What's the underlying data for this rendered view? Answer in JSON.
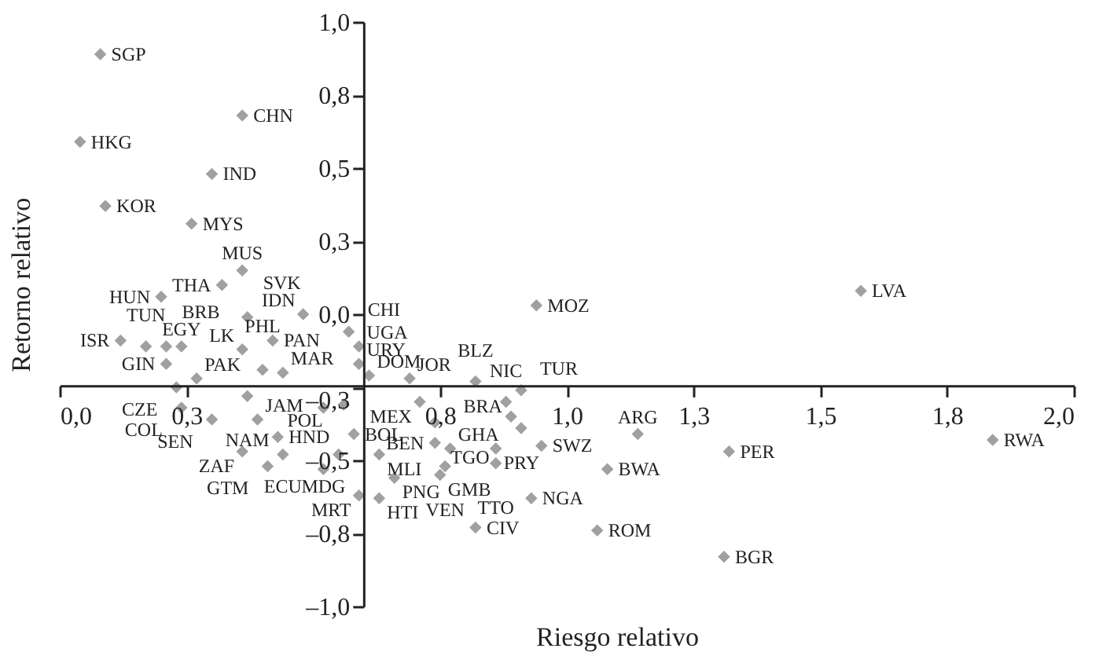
{
  "chart_data": {
    "type": "scatter",
    "xlabel": "Riesgo relativo",
    "ylabel": "Retorno relativo",
    "xlim": [
      0,
      2
    ],
    "ylim": [
      -1,
      1
    ],
    "xticks": [
      {
        "value": 0,
        "label": "0,0"
      },
      {
        "value": 0.25,
        "label": "0,3"
      },
      {
        "value": 0.75,
        "label": "0,8"
      },
      {
        "value": 1,
        "label": "1,0"
      },
      {
        "value": 1.25,
        "label": "1,3"
      },
      {
        "value": 1.5,
        "label": "1,5"
      },
      {
        "value": 1.75,
        "label": "1,8"
      },
      {
        "value": 2,
        "label": "2,0"
      }
    ],
    "yticks": [
      {
        "value": 1,
        "label": "1,0"
      },
      {
        "value": 0.75,
        "label": "0,8"
      },
      {
        "value": 0.5,
        "label": "0,5"
      },
      {
        "value": 0.25,
        "label": "0,3"
      },
      {
        "value": 0,
        "label": "0,0"
      },
      {
        "value": -0.25,
        "label": "–0,3"
      },
      {
        "value": -0.5,
        "label": "–0,5"
      },
      {
        "value": -0.75,
        "label": "–0,8"
      },
      {
        "value": -1,
        "label": "–1,0"
      }
    ],
    "grid": false,
    "marker": "diamond",
    "series": [
      {
        "color": "#a0a0a0",
        "x": [
          0.08,
          0.36,
          0.04,
          0.3,
          0.09,
          0.26,
          0.36,
          0.32,
          0.2,
          0.48,
          0.37,
          0.12,
          0.17,
          0.21,
          0.24,
          0.36,
          0.42,
          0.21,
          0.27,
          0.4,
          0.44,
          0.23,
          0.37,
          0.24,
          0.3,
          0.39,
          0.43,
          0.36,
          0.44,
          0.41,
          0.52,
          0.55,
          0.59,
          0.63,
          0.66,
          0.63,
          0.75,
          0.76,
          0.71,
          0.69,
          0.74,
          0.74,
          0.77,
          0.86,
          0.86,
          0.95,
          0.91,
          0.88,
          0.91,
          0.82,
          0.94,
          0.57,
          0.59,
          0.59,
          0.61,
          0.93,
          0.82,
          1.06,
          1.08,
          1.14,
          1.32,
          1.31,
          1.84,
          1.58,
          0.52,
          0.56,
          0.89,
          0.58
        ],
        "values": [
          0.89,
          0.68,
          0.59,
          0.48,
          0.37,
          0.31,
          0.15,
          0.1,
          0.06,
          0.0,
          -0.01,
          -0.09,
          -0.11,
          -0.11,
          -0.11,
          -0.12,
          -0.09,
          -0.17,
          -0.22,
          -0.19,
          -0.2,
          -0.25,
          -0.28,
          -0.32,
          -0.36,
          -0.36,
          -0.42,
          -0.47,
          -0.48,
          -0.52,
          -0.53,
          -0.48,
          -0.62,
          -0.63,
          -0.56,
          -0.48,
          -0.55,
          -0.52,
          -0.3,
          -0.22,
          -0.37,
          -0.44,
          -0.46,
          -0.46,
          -0.51,
          -0.45,
          -0.39,
          -0.3,
          -0.26,
          -0.23,
          0.03,
          -0.06,
          -0.11,
          -0.17,
          -0.21,
          -0.63,
          -0.73,
          -0.74,
          -0.53,
          -0.41,
          -0.47,
          -0.83,
          -0.43,
          0.08,
          -0.32,
          -0.31,
          -0.35,
          -0.41
        ],
        "value_labels": [
          "SGP",
          "CHN",
          "HKG",
          "IND",
          "KOR",
          "MYS",
          "MUS",
          "THA",
          "HUN",
          "IDN",
          "SVK",
          "ISR",
          "TUN",
          "BRB",
          "EGY",
          "LK",
          "PAN",
          "GIN",
          "PAK",
          "PHL",
          "MAR",
          "CZE",
          "NAM",
          "COL",
          "SEN",
          "JAM",
          "HND",
          "ZAF",
          "ECU",
          "GTM",
          "MDG",
          "POL",
          "MRT",
          "HTI",
          "PNG",
          "MLI",
          "GMB",
          "VEN",
          "MEX",
          "JOR",
          "TGO",
          "BEN",
          "GHA",
          "PRY",
          "TTO",
          "SWZ",
          "BRA",
          "NIC",
          "TUR",
          "BLZ",
          "MOZ",
          "CHI",
          "UGA",
          "URY",
          "DOM",
          "NGA",
          "CIV",
          "ROM",
          "BWA",
          "ARG",
          "PER",
          "BGR",
          "RWA",
          "LVA",
          null,
          null,
          null,
          "BOL"
        ]
      }
    ]
  }
}
